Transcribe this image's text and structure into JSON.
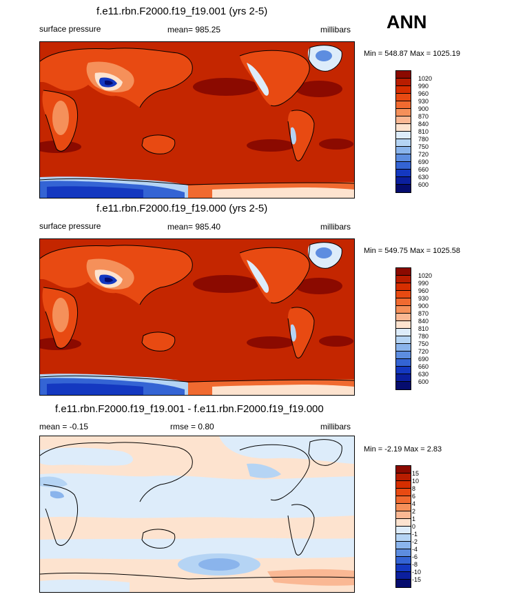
{
  "header": {
    "season": "ANN"
  },
  "panels": [
    {
      "title": "f.e11.rbn.F2000.f19_f19.001 (yrs 2-5)",
      "left": "surface pressure",
      "center": "mean= 985.25",
      "right": "millibars",
      "minmax": "Min = 548.87 Max = 1025.19"
    },
    {
      "title": "f.e11.rbn.F2000.f19_f19.000 (yrs 2-5)",
      "left": "surface pressure",
      "center": "mean= 985.40",
      "right": "millibars",
      "minmax": "Min = 549.75 Max = 1025.58"
    },
    {
      "title": "f.e11.rbn.F2000.f19_f19.001 - f.e11.rbn.F2000.f19_f19.000",
      "left": "mean =  -0.15",
      "center": "rmse =   0.80",
      "right": "millibars",
      "minmax": "Min =  -2.19 Max =   2.83"
    }
  ],
  "chart_data": [
    {
      "type": "heatmap",
      "title": "f.e11.rbn.F2000.f19_f19.001 (yrs 2-5)",
      "variable": "surface pressure",
      "units": "millibars",
      "mean": 985.25,
      "min": 548.87,
      "max": 1025.19,
      "colorbar": {
        "levels": [
          "1020",
          "990",
          "960",
          "930",
          "900",
          "870",
          "840",
          "810",
          "780",
          "750",
          "720",
          "690",
          "660",
          "630",
          "600"
        ],
        "colors": [
          "#8b0a00",
          "#b81d00",
          "#d62e00",
          "#e84a12",
          "#f06a30",
          "#f5905a",
          "#fab894",
          "#fde3cf",
          "#ddecfa",
          "#b5d4f4",
          "#8ab4ec",
          "#5d8de0",
          "#3464d4",
          "#1438c0",
          "#0b1f9e",
          "#050c6e"
        ]
      }
    },
    {
      "type": "heatmap",
      "title": "f.e11.rbn.F2000.f19_f19.000 (yrs 2-5)",
      "variable": "surface pressure",
      "units": "millibars",
      "mean": 985.4,
      "min": 549.75,
      "max": 1025.58,
      "colorbar": {
        "levels": [
          "1020",
          "990",
          "960",
          "930",
          "900",
          "870",
          "840",
          "810",
          "780",
          "750",
          "720",
          "690",
          "660",
          "630",
          "600"
        ],
        "colors": [
          "#8b0a00",
          "#b81d00",
          "#d62e00",
          "#e84a12",
          "#f06a30",
          "#f5905a",
          "#fab894",
          "#fde3cf",
          "#ddecfa",
          "#b5d4f4",
          "#8ab4ec",
          "#5d8de0",
          "#3464d4",
          "#1438c0",
          "#0b1f9e",
          "#050c6e"
        ]
      }
    },
    {
      "type": "heatmap",
      "title": "f.e11.rbn.F2000.f19_f19.001 - f.e11.rbn.F2000.f19_f19.000",
      "units": "millibars",
      "mean": -0.15,
      "rmse": 0.8,
      "min": -2.19,
      "max": 2.83,
      "colorbar": {
        "levels": [
          "15",
          "10",
          "8",
          "6",
          "4",
          "2",
          "1",
          "0",
          "-1",
          "-2",
          "-4",
          "-6",
          "-8",
          "-10",
          "-15"
        ],
        "colors": [
          "#8b0a00",
          "#b81d00",
          "#d62e00",
          "#e84a12",
          "#f06a30",
          "#f5905a",
          "#fab894",
          "#fde3cf",
          "#ddecfa",
          "#b5d4f4",
          "#8ab4ec",
          "#5d8de0",
          "#3464d4",
          "#1438c0",
          "#0b1f9e",
          "#050c6e"
        ]
      }
    }
  ]
}
